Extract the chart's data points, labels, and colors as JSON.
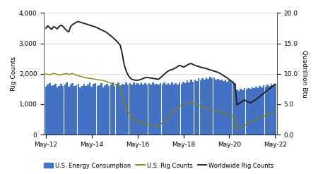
{
  "ylabel_left": "Rig Counts",
  "ylabel_right": "Quadrillion Btu",
  "ylim_left": [
    0,
    4000
  ],
  "yticks_left": [
    0,
    1000,
    2000,
    3000,
    4000
  ],
  "ytick_labels_left": [
    "0",
    "1,000",
    "2,000",
    "3,000",
    "4,000"
  ],
  "yticks_right": [
    0,
    1000,
    2000,
    3000,
    4000
  ],
  "ytick_labels_right": [
    "0.0",
    "5.0",
    "10.0",
    "15.0",
    "20.0"
  ],
  "xtick_labels": [
    "May-12",
    "May-14",
    "May-16",
    "May-18",
    "May-20",
    "May-22"
  ],
  "background_color": "#ffffff",
  "bar_color": "#4472c4",
  "rig_us_color": "#8B8000",
  "rig_world_color": "#1a1a1a",
  "legend_labels": [
    "U.S. Energy Consumption",
    "U.S. Rig Counts",
    "Worldwide Rig Counts"
  ],
  "energy_consumption": [
    1580,
    1650,
    1700,
    1590,
    1620,
    1680,
    1550,
    1610,
    1670,
    1600,
    1640,
    1720,
    1580,
    1650,
    1700,
    1590,
    1620,
    1680,
    1560,
    1610,
    1670,
    1600,
    1640,
    1720,
    1580,
    1660,
    1700,
    1600,
    1630,
    1690,
    1560,
    1620,
    1680,
    1600,
    1650,
    1720,
    1590,
    1660,
    1710,
    1620,
    1680,
    1640,
    1710,
    1640,
    1700,
    1650,
    1720,
    1640,
    1700,
    1650,
    1720,
    1640,
    1700,
    1640,
    1700,
    1650,
    1720,
    1640,
    1680,
    1640,
    1700,
    1650,
    1720,
    1640,
    1700,
    1650,
    1720,
    1640,
    1700,
    1650,
    1720,
    1680,
    1750,
    1700,
    1780,
    1720,
    1800,
    1750,
    1820,
    1770,
    1850,
    1790,
    1860,
    1810,
    1880,
    1830,
    1900,
    1850,
    1870,
    1820,
    1840,
    1790,
    1820,
    1770,
    1800,
    1750,
    1780,
    1720,
    1760,
    1700,
    1480,
    1440,
    1500,
    1460,
    1520,
    1480,
    1540,
    1500,
    1560,
    1520,
    1580,
    1540,
    1600,
    1560,
    1620,
    1580,
    1640,
    1600,
    1660,
    1620,
    1680
  ],
  "us_rig_counts": [
    2000,
    1980,
    1970,
    1990,
    2010,
    2000,
    1980,
    1960,
    1970,
    1990,
    2000,
    2010,
    1970,
    2000,
    2010,
    1980,
    1950,
    1940,
    1920,
    1900,
    1880,
    1870,
    1860,
    1850,
    1840,
    1830,
    1820,
    1810,
    1800,
    1790,
    1780,
    1760,
    1740,
    1720,
    1700,
    1680,
    1660,
    1640,
    1610,
    1580,
    1300,
    1000,
    850,
    750,
    650,
    570,
    510,
    470,
    430,
    400,
    375,
    360,
    345,
    335,
    325,
    315,
    305,
    295,
    285,
    275,
    330,
    390,
    450,
    510,
    570,
    630,
    690,
    750,
    810,
    870,
    920,
    960,
    990,
    1010,
    1040,
    1060,
    1050,
    1030,
    1010,
    990,
    970,
    950,
    930,
    910,
    890,
    870,
    850,
    830,
    810,
    790,
    770,
    750,
    730,
    710,
    690,
    670,
    640,
    610,
    580,
    550,
    200,
    215,
    240,
    265,
    295,
    330,
    365,
    400,
    435,
    470,
    500,
    530,
    560,
    590,
    610,
    630,
    650,
    670,
    690,
    710,
    730
  ],
  "world_rig_counts": [
    3500,
    3580,
    3520,
    3460,
    3550,
    3520,
    3480,
    3560,
    3600,
    3560,
    3480,
    3420,
    3380,
    3560,
    3620,
    3660,
    3700,
    3720,
    3700,
    3680,
    3660,
    3640,
    3620,
    3600,
    3580,
    3560,
    3540,
    3510,
    3480,
    3450,
    3420,
    3390,
    3350,
    3300,
    3250,
    3200,
    3140,
    3080,
    3010,
    2930,
    2650,
    2300,
    2100,
    1960,
    1870,
    1820,
    1800,
    1790,
    1790,
    1800,
    1820,
    1850,
    1870,
    1880,
    1870,
    1860,
    1850,
    1840,
    1830,
    1820,
    1870,
    1930,
    1990,
    2040,
    2090,
    2120,
    2140,
    2170,
    2200,
    2240,
    2280,
    2250,
    2220,
    2250,
    2290,
    2320,
    2340,
    2310,
    2280,
    2260,
    2240,
    2220,
    2200,
    2190,
    2170,
    2150,
    2130,
    2110,
    2090,
    2070,
    2050,
    2020,
    1980,
    1940,
    1900,
    1860,
    1810,
    1760,
    1700,
    1640,
    980,
    1020,
    1060,
    1100,
    1140,
    1100,
    1070,
    1040,
    1080,
    1120,
    1160,
    1210,
    1260,
    1310,
    1360,
    1410,
    1460,
    1510,
    1560,
    1610,
    1660
  ]
}
